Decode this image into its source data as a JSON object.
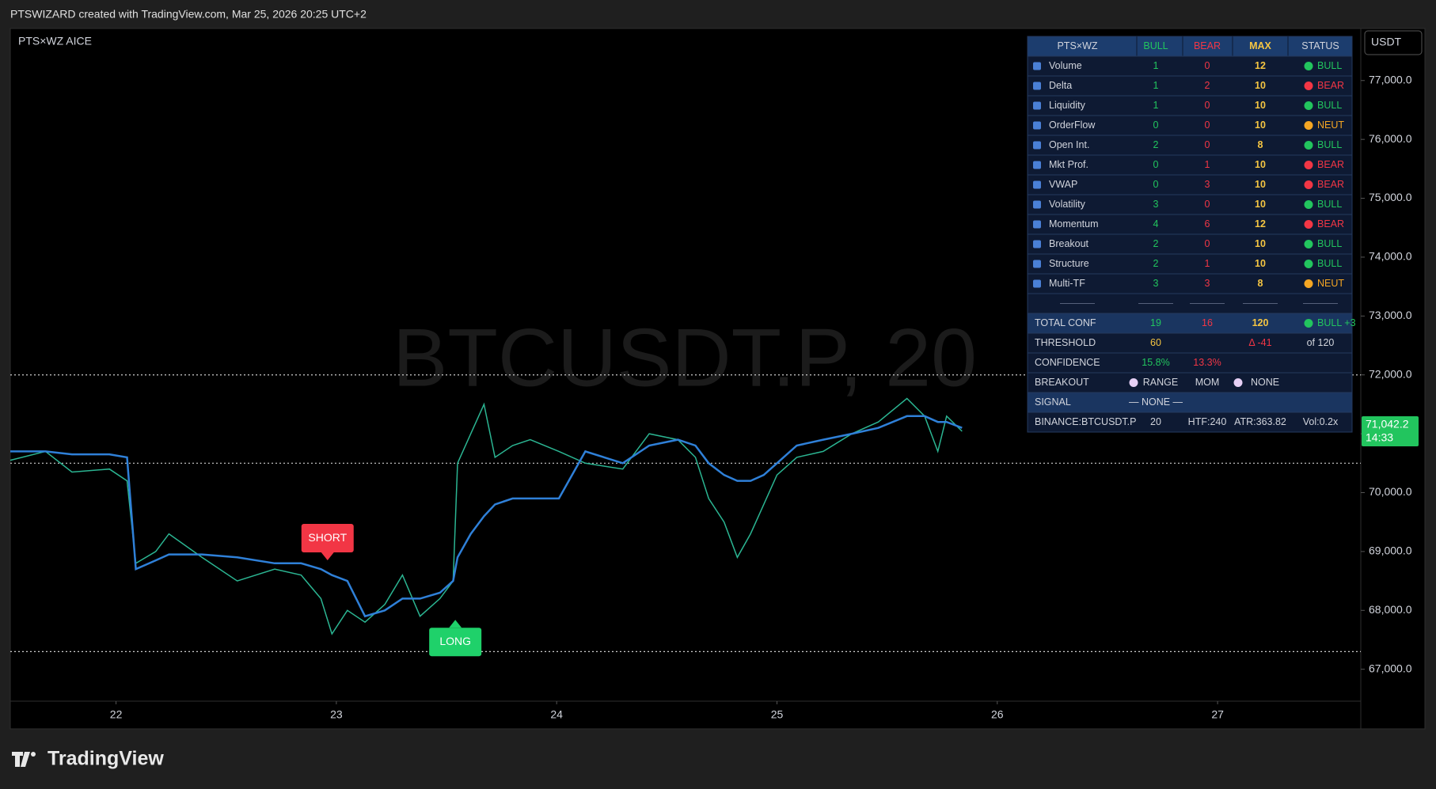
{
  "header": {
    "caption": "PTSWIZARD created with TradingView.com, Mar 25, 2026 20:25 UTC+2",
    "logo": "TradingView"
  },
  "chart_data": {
    "type": "line",
    "pane_title": "PTS×WZ AICE",
    "watermark": "BTCUSDT.P, 20",
    "currency": "USDT",
    "x": [
      21.52,
      21.68,
      21.8,
      21.97,
      22.05,
      22.09,
      22.18,
      22.24,
      22.39,
      22.55,
      22.72,
      22.84,
      22.93,
      22.98,
      23.05,
      23.13,
      23.22,
      23.3,
      23.38,
      23.47,
      23.53,
      23.55,
      23.61,
      23.67,
      23.72,
      23.8,
      23.88,
      24.01,
      24.13,
      24.3,
      24.42,
      24.55,
      24.63,
      24.69,
      24.76,
      24.82,
      24.88,
      24.94,
      25.0,
      25.09,
      25.21,
      25.34,
      25.46,
      25.59,
      25.67,
      25.73,
      25.77,
      25.84
    ],
    "series": [
      {
        "color": "#2bb592",
        "values": [
          70550,
          70700,
          70350,
          70400,
          70200,
          68800,
          69000,
          69300,
          68900,
          68500,
          68700,
          68600,
          68200,
          67600,
          68000,
          67800,
          68100,
          68600,
          67900,
          68200,
          68500,
          70500,
          71000,
          71500,
          70600,
          70800,
          70900,
          70700,
          70500,
          70400,
          71000,
          70900,
          70600,
          69900,
          69500,
          68900,
          69300,
          69800,
          70300,
          70600,
          70700,
          71000,
          71200,
          71600,
          71300,
          70700,
          71300,
          71042.2
        ]
      },
      {
        "color": "#2f80d8",
        "values": [
          70700,
          70700,
          70650,
          70650,
          70600,
          68700,
          68850,
          68950,
          68950,
          68900,
          68800,
          68800,
          68700,
          68600,
          68500,
          67900,
          68000,
          68200,
          68200,
          68300,
          68500,
          68900,
          69300,
          69600,
          69800,
          69900,
          69900,
          69900,
          70700,
          70500,
          70800,
          70900,
          70800,
          70500,
          70300,
          70200,
          70200,
          70300,
          70500,
          70800,
          70900,
          71000,
          71100,
          71300,
          71300,
          71200,
          71200,
          71100
        ]
      }
    ],
    "hlines": [
      72000,
      70500,
      67300
    ],
    "signals": [
      {
        "label": "SHORT",
        "x": 22.96,
        "price": 68850,
        "color": "#f23645"
      },
      {
        "label": "LONG",
        "x": 23.54,
        "price": 67840,
        "color": "#1fd16a"
      }
    ],
    "last_price_label": "71,042.2",
    "countdown": "14:33",
    "last_color": "#22c55e",
    "xlim": [
      21.52,
      27.65
    ],
    "xticks": [
      22,
      23,
      24,
      25,
      26,
      27
    ],
    "ylim": [
      66458,
      77884
    ],
    "yticks": [
      {
        "value": 67000,
        "label": "67,000.0"
      },
      {
        "value": 68000,
        "label": "68,000.0"
      },
      {
        "value": 69000,
        "label": "69,000.0"
      },
      {
        "value": 70000,
        "label": "70,000.0"
      },
      {
        "value": 71000,
        "label": "71,000.0"
      },
      {
        "value": 72000,
        "label": "72,000.0"
      },
      {
        "value": 73000,
        "label": "73,000.0"
      },
      {
        "value": 74000,
        "label": "74,000.0"
      },
      {
        "value": 75000,
        "label": "75,000.0"
      },
      {
        "value": 76000,
        "label": "76,000.0"
      },
      {
        "value": 77000,
        "label": "77,000.0"
      }
    ]
  },
  "table": {
    "rows": [
      {
        "cells": [
          "PTS×WZ",
          "BULL",
          "BEAR",
          "MAX",
          "STATUS"
        ],
        "bg": "#1c3d6e",
        "header": true
      },
      {
        "cells": [
          "Volume",
          1,
          0,
          12,
          "BULL"
        ],
        "dots": [
          null,
          null,
          null,
          null,
          "#22c55e"
        ],
        "icon": true
      },
      {
        "cells": [
          "Delta",
          1,
          2,
          10,
          "BEAR"
        ],
        "dots": [
          null,
          null,
          null,
          null,
          "#f23645"
        ],
        "icon": true
      },
      {
        "cells": [
          "Liquidity",
          1,
          0,
          10,
          "BULL"
        ],
        "dots": [
          null,
          null,
          null,
          null,
          "#22c55e"
        ],
        "icon": true
      },
      {
        "cells": [
          "OrderFlow",
          0,
          0,
          10,
          "NEUT"
        ],
        "dots": [
          null,
          null,
          null,
          null,
          "#f5a623"
        ],
        "icon": true
      },
      {
        "cells": [
          "Open Int.",
          2,
          0,
          8,
          "BULL"
        ],
        "dots": [
          null,
          null,
          null,
          null,
          "#22c55e"
        ],
        "icon": true
      },
      {
        "cells": [
          "Mkt Prof.",
          0,
          1,
          10,
          "BEAR"
        ],
        "dots": [
          null,
          null,
          null,
          null,
          "#f23645"
        ],
        "icon": true
      },
      {
        "cells": [
          "VWAP",
          0,
          3,
          10,
          "BEAR"
        ],
        "dots": [
          null,
          null,
          null,
          null,
          "#f23645"
        ],
        "icon": true
      },
      {
        "cells": [
          "Volatility",
          3,
          0,
          10,
          "BULL"
        ],
        "dots": [
          null,
          null,
          null,
          null,
          "#22c55e"
        ],
        "icon": true
      },
      {
        "cells": [
          "Momentum",
          4,
          6,
          12,
          "BEAR"
        ],
        "dots": [
          null,
          null,
          null,
          null,
          "#f23645"
        ],
        "icon": true
      },
      {
        "cells": [
          "Breakout",
          2,
          0,
          10,
          "BULL"
        ],
        "dots": [
          null,
          null,
          null,
          null,
          "#22c55e"
        ],
        "icon": true
      },
      {
        "cells": [
          "Structure",
          2,
          1,
          10,
          "BULL"
        ],
        "dots": [
          null,
          null,
          null,
          null,
          "#22c55e"
        ],
        "icon": true
      },
      {
        "cells": [
          "Multi-TF",
          3,
          3,
          8,
          "NEUT"
        ],
        "dots": [
          null,
          null,
          null,
          null,
          "#f5a623"
        ],
        "icon": true
      },
      {
        "cells": [
          null,
          null,
          null,
          null,
          null
        ],
        "separator": true
      },
      {
        "cells": [
          "TOTAL CONF",
          19,
          16,
          120,
          "BULL +3"
        ],
        "dots": [
          null,
          null,
          null,
          null,
          "#22c55e"
        ],
        "bg": "#1a3560"
      },
      {
        "cells": [
          "THRESHOLD",
          60,
          null,
          "Δ -41",
          "of 120"
        ],
        "colors": [
          null,
          "#f5c542",
          null,
          "#f23645",
          "#d1d4dc"
        ]
      },
      {
        "cells": [
          "CONFIDENCE",
          "15.8%",
          "13.3%",
          null,
          null
        ]
      },
      {
        "cells": [
          "BREAKOUT",
          "RANGE",
          "MOM",
          "NONE",
          null
        ],
        "dots": [
          null,
          "#e6d0f5",
          null,
          "#e6d0f5",
          null
        ],
        "colors": [
          "#d1d4dc",
          "#d1d4dc",
          "#d1d4dc",
          "#d1d4dc",
          "#d1d4dc"
        ]
      },
      {
        "cells": [
          "SIGNAL",
          "— NONE —",
          null,
          null,
          null
        ],
        "bg": "#1a3560",
        "colors": [
          "#d1d4dc",
          "#d1d4dc",
          "#d1d4dc",
          "#d1d4dc",
          "#d1d4dc"
        ]
      },
      {
        "cells": [
          "BINANCE:BTCUSDT.P",
          20,
          "HTF:240",
          "ATR:363.82",
          "Vol:0.2x"
        ],
        "colors": [
          "#d1d4dc",
          "#d1d4dc",
          "#d1d4dc",
          "#d1d4dc",
          "#d1d4dc"
        ]
      }
    ]
  }
}
